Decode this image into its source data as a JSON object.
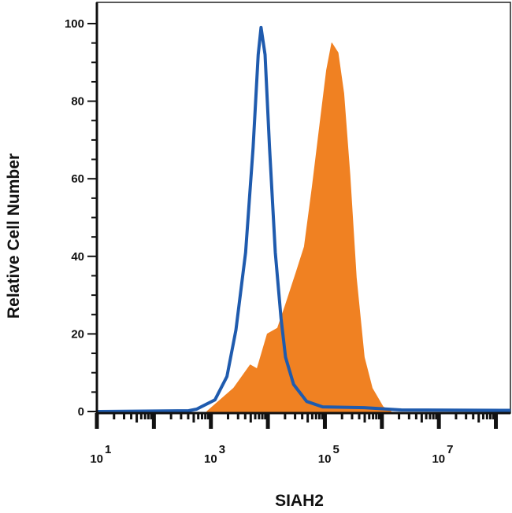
{
  "chart_data": {
    "type": "area",
    "title": "",
    "xlabel": "SIAH2",
    "ylabel": "Relative Cell Number",
    "x_scale": "log",
    "xlim": [
      10,
      180000000
    ],
    "ylim": [
      0,
      100
    ],
    "x_ticks": [
      {
        "base": "10",
        "exp": "1",
        "value": 10
      },
      {
        "base": "10",
        "exp": "3",
        "value": 1000
      },
      {
        "base": "10",
        "exp": "5",
        "value": 100000
      },
      {
        "base": "10",
        "exp": "7",
        "value": 10000000
      }
    ],
    "y_ticks": [
      "0",
      "20",
      "40",
      "60",
      "80",
      "100"
    ],
    "grid": false,
    "series": [
      {
        "style": "filled",
        "color": "#F08122",
        "x": [
          851,
          2510,
          4900,
          6460,
          9770,
          14800,
          20400,
          31600,
          43700,
          60300,
          83200,
          107000,
          132000,
          170000,
          214000,
          275000,
          355000,
          490000,
          676000,
          1050000,
          1450000
        ],
        "y": [
          0,
          6,
          12,
          11,
          20,
          21.5,
          27.5,
          36,
          42.5,
          58,
          75,
          88,
          95,
          92.5,
          82,
          61,
          34.5,
          14,
          6,
          1.2,
          0
        ]
      },
      {
        "style": "outline",
        "color": "#1F5BAE",
        "x": [
          10,
          407,
          562,
          1180,
          1910,
          2750,
          4070,
          5500,
          6760,
          7590,
          8910,
          10700,
          13500,
          17000,
          20400,
          28200,
          47900,
          91200,
          490000,
          2190000,
          180000000
        ],
        "y": [
          0,
          0.2,
          0.6,
          3,
          9,
          21,
          41,
          68,
          92,
          99,
          92,
          68,
          41,
          24,
          14,
          7,
          2.6,
          1.2,
          1,
          0.4,
          0.3
        ]
      }
    ]
  }
}
